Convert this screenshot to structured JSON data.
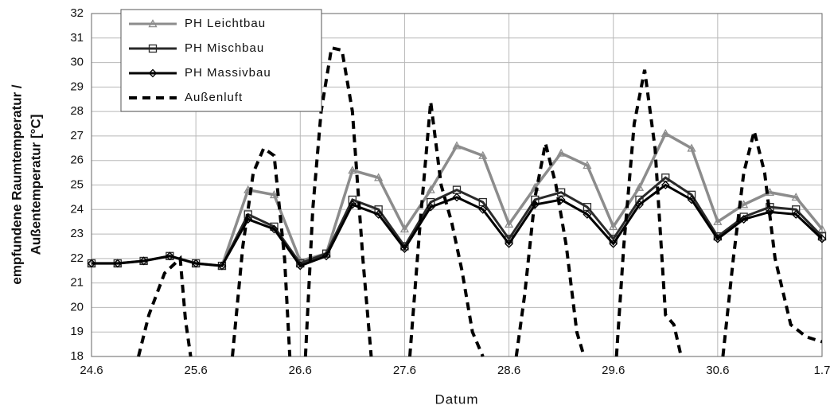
{
  "chart_data": {
    "type": "line",
    "xlabel": "Datum",
    "ylabel": [
      "empfundene Raumtemperatur /",
      "Außentemperatur [°C]"
    ],
    "xlim": [
      0,
      7
    ],
    "ylim": [
      18,
      32
    ],
    "xticks": [
      {
        "value": 0,
        "label": "24.6"
      },
      {
        "value": 1,
        "label": "25.6"
      },
      {
        "value": 2,
        "label": "26.6"
      },
      {
        "value": 3,
        "label": "27.6"
      },
      {
        "value": 4,
        "label": "28.6"
      },
      {
        "value": 5,
        "label": "29.6"
      },
      {
        "value": 6,
        "label": "30.6"
      },
      {
        "value": 7,
        "label": "1.7"
      }
    ],
    "yticks": [
      18,
      19,
      20,
      21,
      22,
      23,
      24,
      25,
      26,
      27,
      28,
      29,
      30,
      31,
      32
    ],
    "grid": true,
    "legend": "upper left",
    "x": [
      0,
      0.25,
      0.5,
      0.75,
      1,
      1.25,
      1.5,
      1.75,
      2,
      2.25,
      2.5,
      2.75,
      3,
      3.25,
      3.5,
      3.75,
      4,
      4.25,
      4.5,
      4.75,
      5,
      5.25,
      5.5,
      5.75,
      6,
      6.25,
      6.5,
      6.75,
      7
    ],
    "series": [
      {
        "name": "PH Leichtbau",
        "color": "#8c8c8c",
        "marker": "triangle",
        "values": [
          21.8,
          21.8,
          21.9,
          22.1,
          21.8,
          21.7,
          24.8,
          24.6,
          21.9,
          22.2,
          25.6,
          25.3,
          23.2,
          24.8,
          26.6,
          26.2,
          23.4,
          24.9,
          26.3,
          25.8,
          23.3,
          24.9,
          27.1,
          26.5,
          23.5,
          24.2,
          24.7,
          24.5,
          23.2
        ]
      },
      {
        "name": "PH Mischbau",
        "color": "#2a2a2a",
        "marker": "square",
        "values": [
          21.8,
          21.8,
          21.9,
          22.1,
          21.8,
          21.7,
          23.8,
          23.3,
          21.8,
          22.2,
          24.4,
          24.0,
          22.5,
          24.3,
          24.8,
          24.3,
          22.8,
          24.4,
          24.7,
          24.1,
          22.8,
          24.4,
          25.3,
          24.6,
          22.9,
          23.7,
          24.1,
          24.0,
          22.9
        ]
      },
      {
        "name": "PH Massivbau",
        "color": "#000000",
        "marker": "diamond",
        "values": [
          21.8,
          21.8,
          21.9,
          22.1,
          21.8,
          21.7,
          23.6,
          23.2,
          21.7,
          22.1,
          24.2,
          23.8,
          22.4,
          24.1,
          24.5,
          24.0,
          22.6,
          24.2,
          24.4,
          23.8,
          22.6,
          24.2,
          25.0,
          24.4,
          22.8,
          23.6,
          23.9,
          23.8,
          22.8
        ]
      },
      {
        "name": "Außenluft",
        "color": "#000000",
        "dashed": true,
        "x": [
          0.45,
          0.55,
          0.7,
          0.85,
          0.9,
          0.95,
          1.2,
          1.35,
          1.45,
          1.55,
          1.65,
          1.75,
          1.85,
          1.9,
          2.0,
          2.05,
          2.12,
          2.2,
          2.3,
          2.4,
          2.5,
          2.6,
          2.68,
          2.8,
          3.05,
          3.15,
          3.25,
          3.35,
          3.45,
          3.55,
          3.65,
          3.75,
          3.9,
          4.07,
          4.15,
          4.25,
          4.35,
          4.45,
          4.55,
          4.65,
          4.72,
          4.8,
          5.03,
          5.1,
          5.2,
          5.3,
          5.4,
          5.5,
          5.58,
          5.65,
          5.8,
          6.05,
          6.15,
          6.25,
          6.35,
          6.45,
          6.55,
          6.7,
          6.85,
          7.0
        ],
        "values": [
          18,
          19.7,
          21.4,
          22.0,
          19.5,
          18,
          null,
          18,
          22.5,
          25.5,
          26.5,
          26.2,
          22.0,
          18,
          null,
          18,
          24,
          28,
          30.6,
          30.5,
          28,
          22,
          18,
          null,
          18,
          23.5,
          28.4,
          25,
          23.5,
          21.5,
          19,
          18,
          null,
          18,
          20.5,
          24.5,
          26.7,
          25,
          22.5,
          19,
          18,
          null,
          18,
          22.5,
          27.5,
          29.7,
          26.5,
          19.7,
          19.3,
          18,
          null,
          18,
          22,
          25.5,
          27.2,
          25.5,
          22,
          19.3,
          18.8,
          18.6
        ]
      }
    ]
  }
}
